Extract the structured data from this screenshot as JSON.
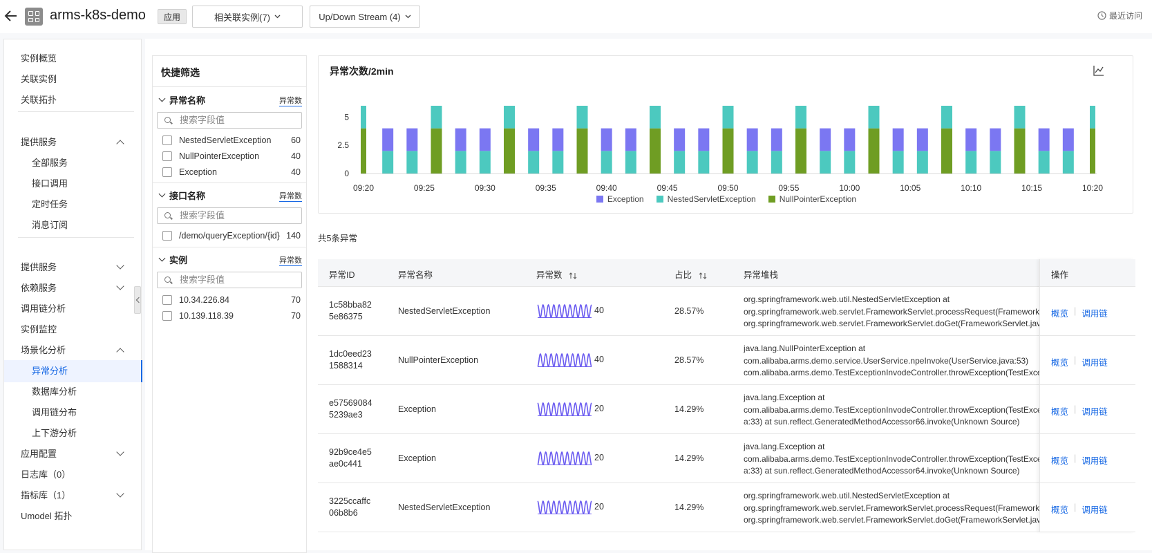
{
  "header": {
    "app_title": "arms-k8s-demo",
    "app_tag": "应用",
    "related_instances": "相关联实例(7)",
    "updown_stream": "Up/Down Stream (4)",
    "recent": "最近访问"
  },
  "sidebar": {
    "items": [
      {
        "label": "实例概览",
        "level": 1
      },
      {
        "label": "关联实例",
        "level": 1
      },
      {
        "label": "关联拓扑",
        "level": 1
      },
      {
        "label": "提供服务",
        "level": 1,
        "chevron": "up"
      },
      {
        "label": "全部服务",
        "level": 2
      },
      {
        "label": "接口调用",
        "level": 2
      },
      {
        "label": "定时任务",
        "level": 2
      },
      {
        "label": "消息订阅",
        "level": 2
      },
      {
        "label": "提供服务",
        "level": 1,
        "chevron": "down"
      },
      {
        "label": "依赖服务",
        "level": 1,
        "chevron": "down"
      },
      {
        "label": "调用链分析",
        "level": 1
      },
      {
        "label": "实例监控",
        "level": 1
      },
      {
        "label": "场景化分析",
        "level": 1,
        "chevron": "up"
      },
      {
        "label": "异常分析",
        "level": 2,
        "active": true
      },
      {
        "label": "数据库分析",
        "level": 2
      },
      {
        "label": "调用链分布",
        "level": 2
      },
      {
        "label": "上下游分析",
        "level": 2
      },
      {
        "label": "应用配置",
        "level": 1,
        "chevron": "down"
      },
      {
        "label": "日志库（0）",
        "level": 1
      },
      {
        "label": "指标库（1）",
        "level": 1,
        "chevron": "down"
      },
      {
        "label": "Umodel 拓扑",
        "level": 1
      }
    ]
  },
  "filter": {
    "title": "快捷筛选",
    "sections": [
      {
        "title": "异常名称",
        "sort": "异常数",
        "placeholder": "搜索字段值",
        "items": [
          {
            "label": "NestedServletException",
            "count": "60"
          },
          {
            "label": "NullPointerException",
            "count": "40"
          },
          {
            "label": "Exception",
            "count": "40"
          }
        ]
      },
      {
        "title": "接口名称",
        "sort": "异常数",
        "placeholder": "搜索字段值",
        "items": [
          {
            "label": "/demo/queryException/{id}",
            "count": "140"
          }
        ]
      },
      {
        "title": "实例",
        "sort": "异常数",
        "placeholder": "搜索字段值",
        "items": [
          {
            "label": "10.34.226.84",
            "count": "70"
          },
          {
            "label": "10.139.118.39",
            "count": "70"
          }
        ]
      }
    ]
  },
  "chart": {
    "title": "异常次数/2min",
    "icon": "line-chart-icon"
  },
  "chart_data": {
    "type": "bar",
    "stacked": true,
    "x_ticks": [
      "09:20",
      "09:25",
      "09:30",
      "09:35",
      "09:40",
      "09:45",
      "09:50",
      "09:55",
      "10:00",
      "10:05",
      "10:10",
      "10:15",
      "10:20"
    ],
    "y_ticks": [
      "0",
      "2.5",
      "5"
    ],
    "ylim": [
      0,
      6
    ],
    "legend_position": "bottom",
    "colors": {
      "Exception": "#7b77f2",
      "NestedServletException": "#4cc9bf",
      "NullPointerException": "#6f9d23"
    },
    "pattern": [
      "A",
      "B",
      "B",
      "C",
      "B",
      "B"
    ],
    "bar_kinds": {
      "A": {
        "NestedServletException": 2,
        "NullPointerException": 4,
        "Exception": 0
      },
      "B": {
        "NestedServletException": 2,
        "NullPointerException": 0,
        "Exception": 2
      },
      "C": {
        "NestedServletException": 2,
        "NullPointerException": 4,
        "Exception": 0
      }
    },
    "bar_count": 31,
    "series": [
      {
        "name": "Exception"
      },
      {
        "name": "NestedServletException"
      },
      {
        "name": "NullPointerException"
      }
    ]
  },
  "total": "共5条异常",
  "table": {
    "headers": {
      "id": "异常ID",
      "name": "异常名称",
      "count": "异常数",
      "pct": "占比",
      "stack": "异常堆栈",
      "op": "操作"
    },
    "op_overview": "概览",
    "op_trace": "调用链",
    "spark_color": "#6b5cf0",
    "rows": [
      {
        "id1": "1c58bba82",
        "id2": "5e86375",
        "name": "NestedServletException",
        "count": "40",
        "pct": "28.57%",
        "s1": "org.springframework.web.util.NestedServletException at",
        "s2": "org.springframework.web.servlet.FrameworkServlet.processRequest(FrameworkServlet.java)",
        "s3": "org.springframework.web.servlet.FrameworkServlet.doGet(FrameworkServlet.java)"
      },
      {
        "id1": "1dc0eed23",
        "id2": "1588314",
        "name": "NullPointerException",
        "count": "40",
        "pct": "28.57%",
        "s1": "java.lang.NullPointerException at",
        "s2": "com.alibaba.arms.demo.service.UserService.npeInvoke(UserService.java:53)",
        "s3": "com.alibaba.arms.demo.TestExceptionInvodeController.throwException(TestExceptionInvodeController.java)"
      },
      {
        "id1": "e57569084",
        "id2": "5239ae3",
        "name": "Exception",
        "count": "20",
        "pct": "14.29%",
        "s1": "java.lang.Exception at",
        "s2": "com.alibaba.arms.demo.TestExceptionInvodeController.throwException(TestExceptionInvodeController.jav",
        "s3": "a:33) at sun.reflect.GeneratedMethodAccessor66.invoke(Unknown Source)"
      },
      {
        "id1": "92b9ce4e5",
        "id2": "ae0c441",
        "name": "Exception",
        "count": "20",
        "pct": "14.29%",
        "s1": "java.lang.Exception at",
        "s2": "com.alibaba.arms.demo.TestExceptionInvodeController.throwException(TestExceptionInvodeController.jav",
        "s3": "a:33) at sun.reflect.GeneratedMethodAccessor64.invoke(Unknown Source)"
      },
      {
        "id1": "3225ccaffc",
        "id2": "06b8b6",
        "name": "NestedServletException",
        "count": "20",
        "pct": "14.29%",
        "s1": "org.springframework.web.util.NestedServletException at",
        "s2": "org.springframework.web.servlet.FrameworkServlet.processRequest(FrameworkServlet.java)",
        "s3": "org.springframework.web.servlet.FrameworkServlet.doGet(FrameworkServlet.java)"
      }
    ]
  }
}
